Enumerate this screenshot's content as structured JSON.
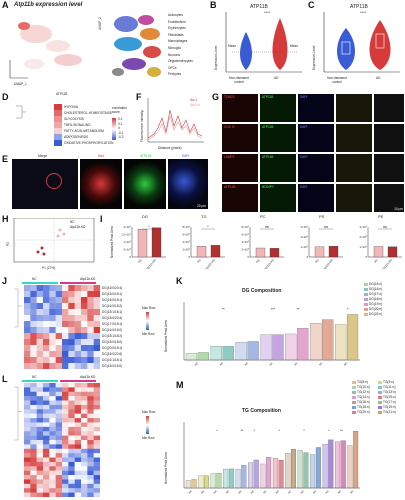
{
  "panels": {
    "A": {
      "label": "A",
      "title": "Atp11b expression level",
      "umap_x": "UMAP_1",
      "umap_y": "UMAP_2",
      "legend": [
        "Astrocytes",
        "Endothelium",
        "Erythrocytes",
        "Fibroblasts",
        "Macrophages",
        "Microglia",
        "Neurons",
        "Oligodendrocytes",
        "OPCs",
        "Pericytes"
      ]
    },
    "B": {
      "label": "B",
      "title": "ATP11B",
      "ylabel": "Expression Level",
      "mean": "Mean",
      "groups": [
        "Non-diseased control",
        "AD"
      ],
      "sig": "****"
    },
    "C": {
      "label": "C",
      "title": "ATP11B",
      "ylabel": "Expression Level",
      "groups": [
        "Non-diseased control",
        "AD"
      ],
      "sig": "****"
    },
    "D": {
      "label": "D",
      "col": "ATP11B",
      "rows": [
        "HYPOXIA",
        "CHOLESTEROL-HOMEOSTASIS",
        "GLYCOLYSIS",
        "TNFA-SIGNALING",
        "FATTY-ACID-METABOLISM",
        "ADIPOGENESIS",
        "OXIDATIVE-PHOSPHORYLATION"
      ],
      "legend_title": "correlation score",
      "scale": [
        "0.2",
        "0.1",
        "0",
        "-0.1",
        "-0.2"
      ]
    },
    "E": {
      "label": "E",
      "cols": [
        "Merge",
        "Iba1",
        "ATP11B",
        "DAPI"
      ],
      "scale": "20 μm"
    },
    "F": {
      "label": "F",
      "ylabel": "Fluorescence intensity",
      "xlabel": "Distance (pixels)",
      "legend": [
        "Iba-1",
        "Atp11b"
      ]
    },
    "G": {
      "label": "G",
      "rows": [
        [
          "TOM20",
          "ATP11B",
          "DAPI"
        ],
        [
          "COX IV",
          "ATP11B",
          "DAPI"
        ],
        [
          "LAMP2",
          "ATP11B",
          "DAPI"
        ],
        [
          "ATP11B",
          "BODIPY",
          "DAPI"
        ]
      ],
      "scale": "10 μm"
    },
    "H": {
      "label": "H",
      "xlabel": "P1 (27%)",
      "ylabel": "P2",
      "legend": [
        "NC",
        "Atp11b-KD"
      ]
    },
    "I": {
      "label": "I",
      "ylabel": "Normalized Peak Area",
      "groups": [
        "NC",
        "Atp11b-KD"
      ],
      "subplots": [
        {
          "title": "DG",
          "sig": "*",
          "ticks": [
            "0",
            "5×10⁵",
            "1×10⁶",
            "1.5×10⁶",
            "2×10⁶"
          ],
          "values": [
            1.85,
            1.95
          ]
        },
        {
          "title": "TG",
          "sig": "*",
          "ticks": [
            "0",
            "2×10⁵",
            "4×10⁵",
            "6×10⁵",
            "8×10⁵"
          ],
          "values": [
            0.72,
            0.78
          ]
        },
        {
          "title": "PC",
          "sig": "ns",
          "ticks": [
            "0",
            "2×10⁵",
            "4×10⁵",
            "6×10⁵",
            "8×10⁵"
          ],
          "values": [
            0.6,
            0.58
          ]
        },
        {
          "title": "PS",
          "sig": "ns",
          "ticks": [
            "0",
            "1×10⁵",
            "2×10⁵",
            "3×10⁵"
          ],
          "values": [
            0.68,
            0.72
          ]
        },
        {
          "title": "PE",
          "sig": "ns",
          "ticks": [
            "0",
            "1×10⁵",
            "2×10⁵",
            "3×10⁵"
          ],
          "values": [
            0.7,
            0.68
          ]
        }
      ]
    },
    "J": {
      "label": "J",
      "groups": [
        "NC",
        "Atp11b-KD"
      ],
      "legend": [
        "Max Row",
        "Min Row"
      ],
      "rows": [
        "DG(16:0/20:4)",
        "DG(18:0/18:1)",
        "DG(16:0/18:1)",
        "DG(16:0/18:2)",
        "DG(18:1/18:1)",
        "DG(18:0/20:4)",
        "DG(17:0/18:1)",
        "DG(16:0/16:0)",
        "DG(18:1/18:2)",
        "DG(18:0/18:0)",
        "DG(20:0/18:1)",
        "DG(18:0/22:6)",
        "DG(16:1/18:1)",
        "DG(18:0/16:0)"
      ]
    },
    "K": {
      "label": "K",
      "title": "DG Composition",
      "ylabel": "Normalized Peak Area",
      "legend": [
        "DG(16:n)",
        "DG(16:n)",
        "DG(17:n)",
        "DG(18:n)",
        "DG(19:n)",
        "DG(20:n)",
        "DG(22:n)"
      ],
      "sig": [
        "**",
        "***",
        "**",
        "*"
      ]
    },
    "L": {
      "label": "L",
      "groups": [
        "NC",
        "Atp11b-KD"
      ],
      "legend": [
        "Max Row",
        "Min Row"
      ]
    },
    "M": {
      "label": "M",
      "title": "TG Composition",
      "ylabel": "Normalized Peak Area",
      "legend": [
        "TG(8:n)",
        "TG(9:n)",
        "TG(10:n)",
        "TG(11:n)",
        "TG(12:n)",
        "TG(13:n)",
        "TG(14:n)",
        "TG(15:n)",
        "TG(16:n)",
        "TG(17:n)",
        "TG(18:n)",
        "TG(19:n)",
        "TG(20:n)",
        "TG(21:n)"
      ],
      "sig": [
        "*",
        "**",
        "*",
        "*",
        "*",
        "*",
        "**"
      ]
    }
  },
  "colors": {
    "nc": "#f2b6b6",
    "kd": "#b03030",
    "red": "#d63a3a",
    "blue": "#3b5bd6",
    "green": "#2ecc40"
  }
}
